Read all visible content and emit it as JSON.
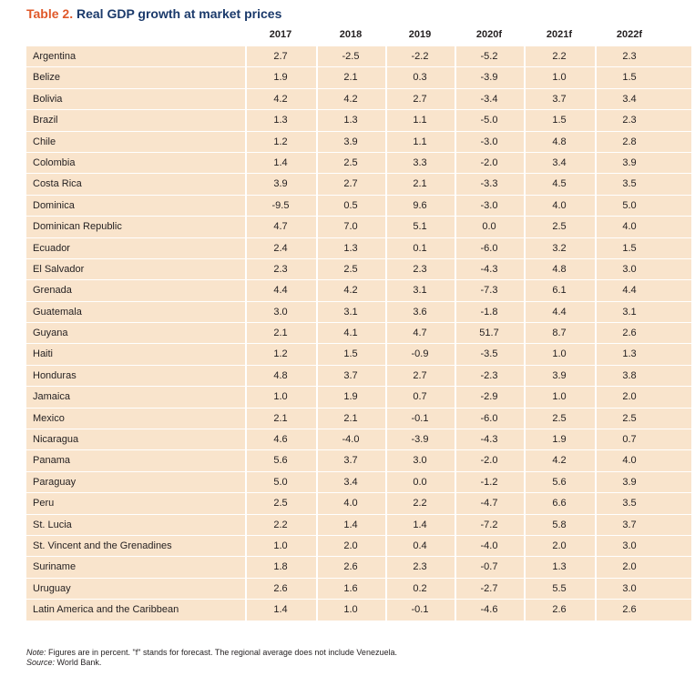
{
  "table": {
    "title_number": "Table 2.",
    "title_text": "Real GDP growth at market prices",
    "columns": [
      "2017",
      "2018",
      "2019",
      "2020f",
      "2021f",
      "2022f"
    ],
    "rows": [
      {
        "name": "Argentina",
        "values": [
          "2.7",
          "-2.5",
          "-2.2",
          "-5.2",
          "2.2",
          "2.3"
        ]
      },
      {
        "name": "Belize",
        "values": [
          "1.9",
          "2.1",
          "0.3",
          "-3.9",
          "1.0",
          "1.5"
        ]
      },
      {
        "name": "Bolivia",
        "values": [
          "4.2",
          "4.2",
          "2.7",
          "-3.4",
          "3.7",
          "3.4"
        ]
      },
      {
        "name": "Brazil",
        "values": [
          "1.3",
          "1.3",
          "1.1",
          "-5.0",
          "1.5",
          "2.3"
        ]
      },
      {
        "name": "Chile",
        "values": [
          "1.2",
          "3.9",
          "1.1",
          "-3.0",
          "4.8",
          "2.8"
        ]
      },
      {
        "name": "Colombia",
        "values": [
          "1.4",
          "2.5",
          "3.3",
          "-2.0",
          "3.4",
          "3.9"
        ]
      },
      {
        "name": "Costa Rica",
        "values": [
          "3.9",
          "2.7",
          "2.1",
          "-3.3",
          "4.5",
          "3.5"
        ]
      },
      {
        "name": "Dominica",
        "values": [
          "-9.5",
          "0.5",
          "9.6",
          "-3.0",
          "4.0",
          "5.0"
        ]
      },
      {
        "name": "Dominican Republic",
        "values": [
          "4.7",
          "7.0",
          "5.1",
          "0.0",
          "2.5",
          "4.0"
        ]
      },
      {
        "name": "Ecuador",
        "values": [
          "2.4",
          "1.3",
          "0.1",
          "-6.0",
          "3.2",
          "1.5"
        ]
      },
      {
        "name": "El Salvador",
        "values": [
          "2.3",
          "2.5",
          "2.3",
          "-4.3",
          "4.8",
          "3.0"
        ]
      },
      {
        "name": "Grenada",
        "values": [
          "4.4",
          "4.2",
          "3.1",
          "-7.3",
          "6.1",
          "4.4"
        ]
      },
      {
        "name": "Guatemala",
        "values": [
          "3.0",
          "3.1",
          "3.6",
          "-1.8",
          "4.4",
          "3.1"
        ]
      },
      {
        "name": "Guyana",
        "values": [
          "2.1",
          "4.1",
          "4.7",
          "51.7",
          "8.7",
          "2.6"
        ]
      },
      {
        "name": "Haiti",
        "values": [
          "1.2",
          "1.5",
          "-0.9",
          "-3.5",
          "1.0",
          "1.3"
        ]
      },
      {
        "name": "Honduras",
        "values": [
          "4.8",
          "3.7",
          "2.7",
          "-2.3",
          "3.9",
          "3.8"
        ]
      },
      {
        "name": "Jamaica",
        "values": [
          "1.0",
          "1.9",
          "0.7",
          "-2.9",
          "1.0",
          "2.0"
        ]
      },
      {
        "name": "Mexico",
        "values": [
          "2.1",
          "2.1",
          "-0.1",
          "-6.0",
          "2.5",
          "2.5"
        ]
      },
      {
        "name": "Nicaragua",
        "values": [
          "4.6",
          "-4.0",
          "-3.9",
          "-4.3",
          "1.9",
          "0.7"
        ]
      },
      {
        "name": "Panama",
        "values": [
          "5.6",
          "3.7",
          "3.0",
          "-2.0",
          "4.2",
          "4.0"
        ]
      },
      {
        "name": "Paraguay",
        "values": [
          "5.0",
          "3.4",
          "0.0",
          "-1.2",
          "5.6",
          "3.9"
        ]
      },
      {
        "name": "Peru",
        "values": [
          "2.5",
          "4.0",
          "2.2",
          "-4.7",
          "6.6",
          "3.5"
        ]
      },
      {
        "name": "St. Lucia",
        "values": [
          "2.2",
          "1.4",
          "1.4",
          "-7.2",
          "5.8",
          "3.7"
        ]
      },
      {
        "name": "St. Vincent and the Grenadines",
        "values": [
          "1.0",
          "2.0",
          "0.4",
          "-4.0",
          "2.0",
          "3.0"
        ]
      },
      {
        "name": "Suriname",
        "values": [
          "1.8",
          "2.6",
          "2.3",
          "-0.7",
          "1.3",
          "2.0"
        ]
      },
      {
        "name": "Uruguay",
        "values": [
          "2.6",
          "1.6",
          "0.2",
          "-2.7",
          "5.5",
          "3.0"
        ]
      },
      {
        "name": "Latin America and the Caribbean",
        "values": [
          "1.4",
          "1.0",
          "-0.1",
          "-4.6",
          "2.6",
          "2.6"
        ]
      }
    ]
  },
  "footer": {
    "note_label": "Note:",
    "note_text": " Figures are in percent. \"f\" stands for forecast. The regional average does not include Venezuela.",
    "source_label": "Source:",
    "source_text": " World Bank."
  }
}
